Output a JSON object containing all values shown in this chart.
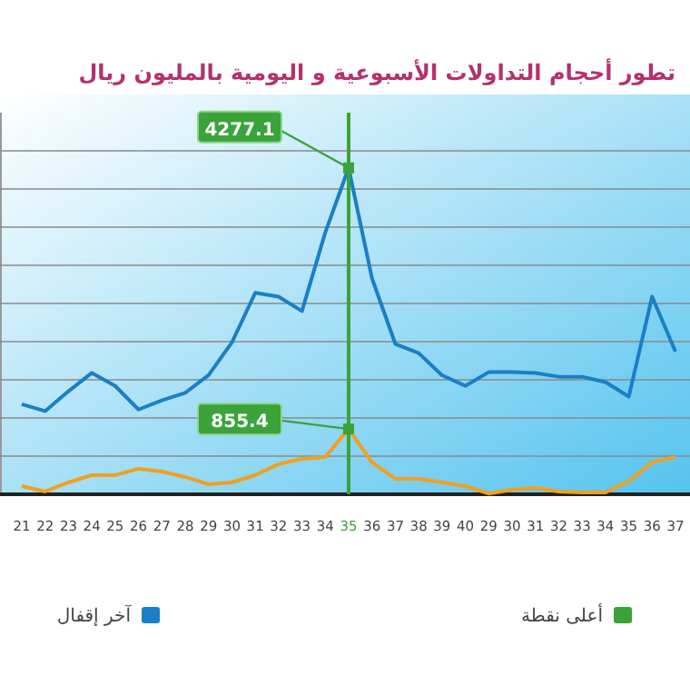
{
  "chart_data": {
    "type": "line",
    "title": "تطور أحجام التداولات الأسبوعية و اليومية بالمليون ريال",
    "categories": [
      "21",
      "22",
      "23",
      "24",
      "25",
      "26",
      "27",
      "28",
      "29",
      "30",
      "31",
      "32",
      "33",
      "34",
      "35",
      "36",
      "37",
      "38",
      "39",
      "40",
      "29",
      "30",
      "31",
      "32",
      "33",
      "34",
      "35",
      "36",
      "37"
    ],
    "ylim": [
      0,
      5000
    ],
    "yticks": [
      {
        "value": 500,
        "label": null
      },
      {
        "value": 1000,
        "label": null
      },
      {
        "value": 1500,
        "label": null
      },
      {
        "value": 2000,
        "label": null
      },
      {
        "value": 2500,
        "label": null
      },
      {
        "value": 3000,
        "label": null
      },
      {
        "value": 3500,
        "label": null
      },
      {
        "value": 4000,
        "label": null
      },
      {
        "value": 4500,
        "label": null
      }
    ],
    "grid": "y",
    "tick_labels": "x",
    "legend": "bottom",
    "marker": "none",
    "line_style": "solid",
    "series": [
      {
        "name": "آخر إقفال",
        "color": "#1a7fc6",
        "values": [
          1180,
          1090,
          1350,
          1590,
          1420,
          1110,
          1230,
          1330,
          1560,
          1990,
          2640,
          2590,
          2400,
          3430,
          4277.1,
          2830,
          1970,
          1850,
          1560,
          1420,
          1600,
          1600,
          1590,
          1540,
          1540,
          1470,
          1280,
          2590,
          1870
        ]
      },
      {
        "color": "#f0a020",
        "values": [
          107,
          36,
          155,
          250,
          250,
          334,
          298,
          227,
          131,
          155,
          250,
          394,
          465,
          489,
          855.4,
          418,
          203,
          203,
          155,
          107,
          10,
          60,
          84,
          36,
          24,
          24,
          172,
          418,
          489
        ]
      },
      {
        "type": "scatter",
        "name": "أعلى نقطة",
        "color": "#3aa33a",
        "marker": "square",
        "x": [
          "35",
          "35"
        ],
        "values": [
          4277.1,
          855.4
        ],
        "value_labels": [
          "4277.1",
          "855.4"
        ]
      }
    ],
    "ref_lines": [
      {
        "axis": "x",
        "value": "35",
        "color": "#3aa33a"
      }
    ]
  }
}
